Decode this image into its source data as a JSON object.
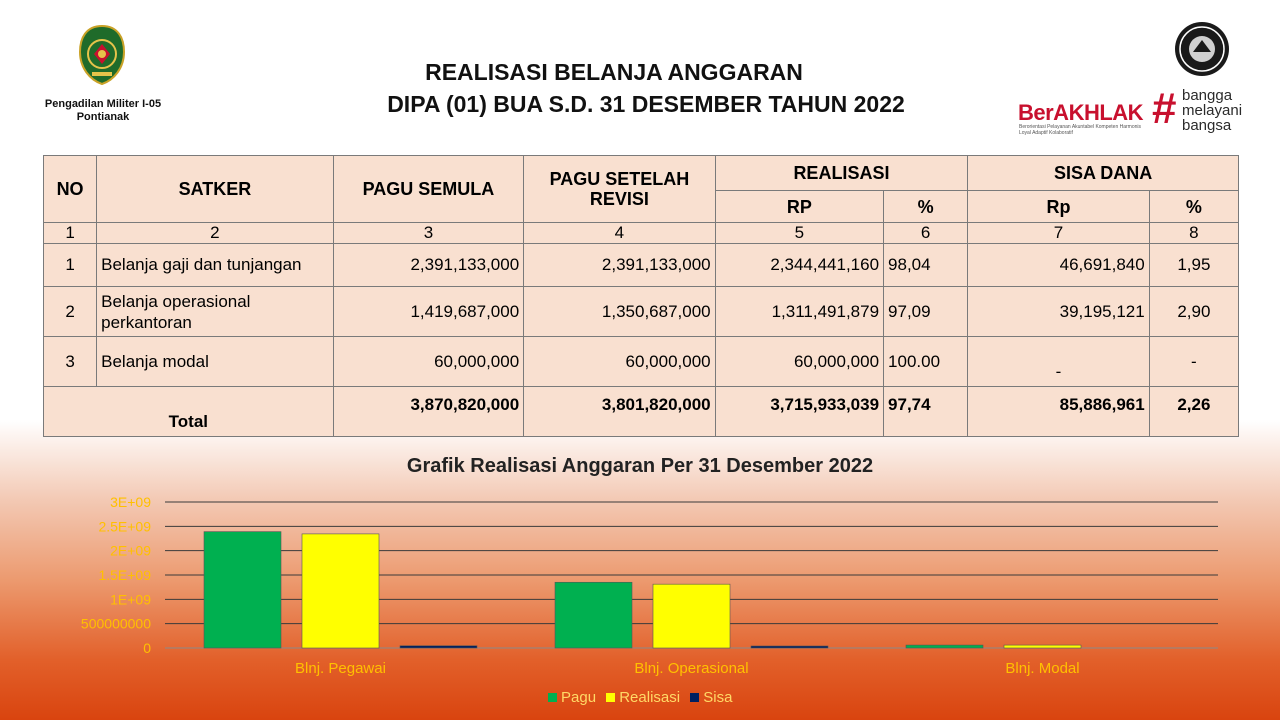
{
  "header": {
    "org_name_line1": "Pengadilan Militer I-05",
    "org_name_line2": "Pontianak",
    "title_line1": "REALISASI BELANJA ANGGARAN",
    "title_line2": "DIPA (01) BUA S.D. 31 DESEMBER TAHUN 2022",
    "brand_main": "BerAKHLAK",
    "brand_tagline": "Berorientasi Pelayanan Akuntabel Kompeten Harmonis Loyal Adaptif Kolaboratif",
    "brand_hash": "#",
    "brand_words": [
      "bangga",
      "melayani",
      "bangsa"
    ],
    "brand_color": "#c8102e"
  },
  "table": {
    "headers": {
      "no": "NO",
      "satker": "SATKER",
      "pagu_semula": "PAGU  SEMULA",
      "pagu_revisi": "PAGU  SETELAH REVISI",
      "realisasi": "REALISASI",
      "sisa_dana": "SISA DANA",
      "rp": "RP",
      "pct": "%",
      "rp2": "Rp",
      "pct2": "%"
    },
    "column_numbers": [
      "1",
      "2",
      "3",
      "4",
      "5",
      "6",
      "7",
      "8"
    ],
    "rows": [
      {
        "no": "1",
        "satker": "Belanja gaji dan tunjangan",
        "pagu_semula": "2,391,133,000",
        "pagu_revisi": "2,391,133,000",
        "realisasi_rp": "2,344,441,160",
        "realisasi_pct": "98,04",
        "sisa_rp": "46,691,840",
        "sisa_pct": "1,95"
      },
      {
        "no": "2",
        "satker": "Belanja operasional perkantoran",
        "pagu_semula": "1,419,687,000",
        "pagu_revisi": "1,350,687,000",
        "realisasi_rp": "1,311,491,879",
        "realisasi_pct": "97,09",
        "sisa_rp": "39,195,121",
        "sisa_pct": "2,90"
      },
      {
        "no": "3",
        "satker": "Belanja modal",
        "pagu_semula": "60,000,000",
        "pagu_revisi": "60,000,000",
        "realisasi_rp": "60,000,000",
        "realisasi_pct": "100.00",
        "sisa_rp": "-",
        "sisa_pct": "-"
      }
    ],
    "total": {
      "label": "Total",
      "pagu_semula": "3,870,820,000",
      "pagu_revisi": "3,801,820,000",
      "realisasi_rp": "3,715,933,039",
      "realisasi_pct": "97,74",
      "sisa_rp": "85,886,961",
      "sisa_pct": "2,26"
    }
  },
  "chart_title": "Grafik Realisasi Anggaran Per 31 Desember 2022",
  "chart_data": {
    "type": "bar",
    "title": "Grafik Realisasi Anggaran Per 31 Desember 2022",
    "categories": [
      "Blnj. Pegawai",
      "Blnj. Operasional",
      "Blnj. Modal"
    ],
    "series": [
      {
        "name": "Pagu",
        "color": "#00b050",
        "values": [
          2391133000,
          1350687000,
          60000000
        ]
      },
      {
        "name": "Realisasi",
        "color": "#ffff00",
        "values": [
          2344441160,
          1311491879,
          60000000
        ]
      },
      {
        "name": "Sisa",
        "color": "#002060",
        "values": [
          46691840,
          39195121,
          0
        ]
      }
    ],
    "y_ticks": [
      "0",
      "500000000",
      "1E+09",
      "1.5E+09",
      "2E+09",
      "2.5E+09",
      "3E+09"
    ],
    "ylim": [
      0,
      3000000000
    ],
    "grid": true,
    "legend_position": "bottom",
    "label_color": "#ffc000"
  }
}
